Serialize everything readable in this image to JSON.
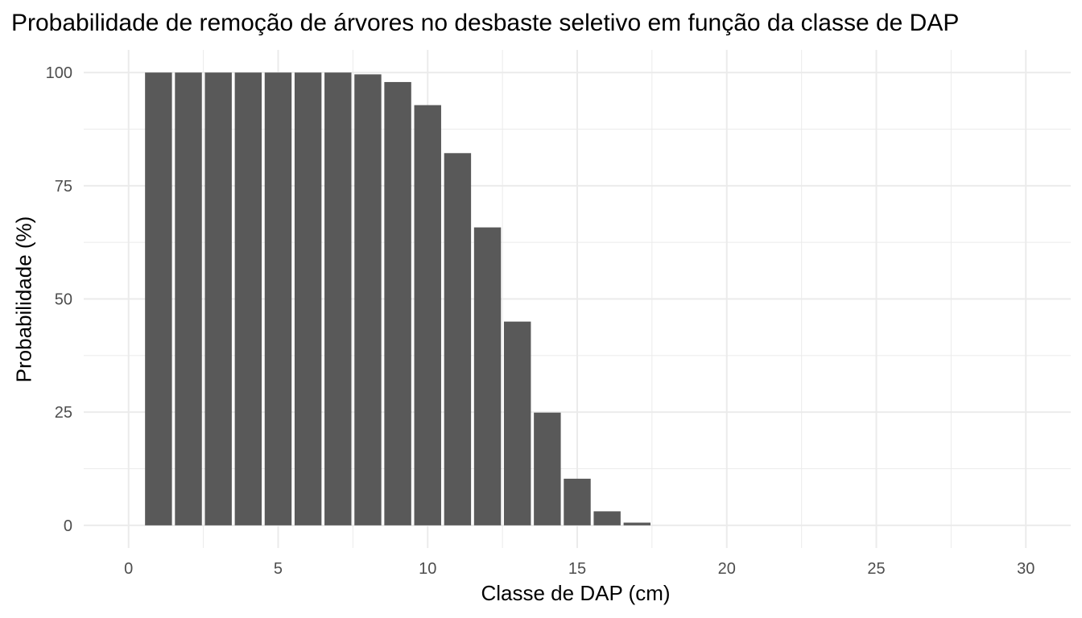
{
  "chart_data": {
    "type": "bar",
    "title": "Probabilidade de remoção de árvores no desbaste seletivo em função da classe de DAP",
    "xlabel": "Classe de DAP (cm)",
    "ylabel": "Probabilidade (%)",
    "x": [
      1,
      2,
      3,
      4,
      5,
      6,
      7,
      8,
      9,
      10,
      11,
      12,
      13,
      14,
      15,
      16,
      17,
      18,
      19,
      20,
      21,
      22,
      23,
      24,
      25,
      26,
      27,
      28,
      29,
      30
    ],
    "values": [
      100,
      100,
      100,
      100,
      100,
      100,
      100,
      99.6,
      97.9,
      92.8,
      82.2,
      65.8,
      45.0,
      24.9,
      10.3,
      3.1,
      0.6,
      0,
      0,
      0,
      0,
      0,
      0,
      0,
      0,
      0,
      0,
      0,
      0,
      0
    ],
    "xlim": [
      -1.5,
      31.5
    ],
    "ylim": [
      -5,
      105
    ],
    "x_ticks": [
      0,
      5,
      10,
      15,
      20,
      25,
      30
    ],
    "y_ticks": [
      0,
      25,
      50,
      75,
      100
    ],
    "x_tick_labels": [
      "0",
      "5",
      "10",
      "15",
      "20",
      "25",
      "30"
    ],
    "y_tick_labels": [
      "0",
      "25",
      "50",
      "75",
      "100"
    ],
    "bar_color": "#595959",
    "grid": true,
    "grid_color": "#ebebeb",
    "legend": "none"
  }
}
